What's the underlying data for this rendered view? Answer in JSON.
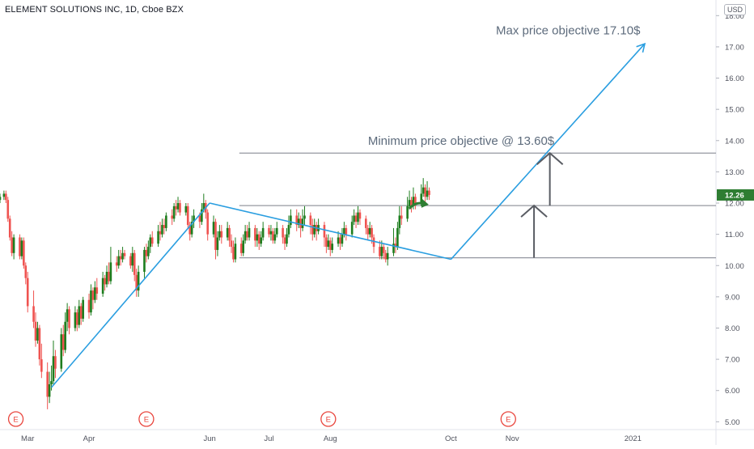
{
  "header": {
    "title": "ELEMENT SOLUTIONS INC, 1D, Cboe BZX",
    "currency": "USD"
  },
  "colors": {
    "up": "#26a69a",
    "up_fill": "#1e7d1e",
    "down": "#ef5350",
    "trend": "#2a9ee0",
    "level": "#9598a1",
    "arrow": "#595c63",
    "green_arrow": "#2e7d32",
    "price_tag": "#2e7d32",
    "text_annot": "#5d6b7c",
    "earn": "#e9473f"
  },
  "chart_data": {
    "type": "candlestick",
    "title": "ELEMENT SOLUTIONS INC, 1D, Cboe BZX",
    "y_range": [
      4.75,
      18.5
    ],
    "y_ticks": [
      5,
      6,
      7,
      8,
      9,
      10,
      11,
      12,
      13,
      14,
      15,
      16,
      17,
      18
    ],
    "y_tick_labels": [
      "5.00",
      "6.00",
      "7.00",
      "8.00",
      "9.00",
      "10.00",
      "11.00",
      "12.00",
      "13.00",
      "14.00",
      "15.00",
      "16.00",
      "17.00",
      "18.00"
    ],
    "x_ticks": [
      {
        "label": "Mar",
        "day": 0
      },
      {
        "label": "Apr",
        "day": 31
      },
      {
        "label": "Jun",
        "day": 92
      },
      {
        "label": "Jul",
        "day": 122
      },
      {
        "label": "Aug",
        "day": 153
      },
      {
        "label": "Oct",
        "day": 214
      },
      {
        "label": "Nov",
        "day": 245
      },
      {
        "label": "2021",
        "day": 306
      }
    ],
    "x_range": [
      -14,
      348
    ],
    "last_price": "12.26",
    "earnings_markers": [
      {
        "label": "E",
        "day": -6
      },
      {
        "label": "E",
        "day": 60
      },
      {
        "label": "E",
        "day": 152
      },
      {
        "label": "E",
        "day": 243
      }
    ],
    "levels": [
      {
        "name": "minimum objective",
        "value": 13.6,
        "from_day": 107,
        "to_day": 348
      },
      {
        "name": "resistance",
        "value": 11.92,
        "from_day": 107,
        "to_day": 348
      },
      {
        "name": "support",
        "value": 10.25,
        "from_day": 107,
        "to_day": 348
      }
    ],
    "trendlines": [
      {
        "from": {
          "day": 12,
          "price": 6.1
        },
        "to": {
          "day": 92,
          "price": 12.0
        }
      },
      {
        "from": {
          "day": 92,
          "price": 12.0
        },
        "to": {
          "day": 214,
          "price": 10.2
        }
      },
      {
        "from": {
          "day": 214,
          "price": 10.2
        },
        "to": {
          "day": 312,
          "price": 17.1
        }
      }
    ],
    "annotations": [
      {
        "text": "Max price objective 17.10$",
        "day": 295,
        "price": 17.4
      },
      {
        "text": "Minimum price objective @ 13.60$",
        "day": 220,
        "price": 13.86
      }
    ],
    "price_objectives": [
      {
        "label": "minimum",
        "value": 13.6
      },
      {
        "label": "max",
        "value": 17.1
      }
    ],
    "candles": [
      [
        -14,
        12.1,
        12.2,
        12.3,
        12.0
      ],
      [
        -12,
        12.2,
        12.3,
        12.4,
        12.1
      ],
      [
        -11,
        12.3,
        12.1,
        12.4,
        12.0
      ],
      [
        -10,
        12.1,
        11.5,
        12.2,
        11.4
      ],
      [
        -9,
        11.5,
        10.9,
        11.6,
        10.8
      ],
      [
        -8,
        10.9,
        10.4,
        11.1,
        10.3
      ],
      [
        -7,
        10.4,
        10.9,
        11.0,
        10.2
      ],
      [
        -4,
        10.9,
        10.3,
        11.0,
        10.2
      ],
      [
        -3,
        10.3,
        10.8,
        10.9,
        10.2
      ],
      [
        -2,
        10.8,
        10.0,
        10.9,
        9.9
      ],
      [
        -1,
        10.0,
        9.6,
        10.1,
        9.4
      ],
      [
        0,
        9.6,
        8.7,
        9.8,
        8.5
      ],
      [
        3,
        8.7,
        8.2,
        9.2,
        8.0
      ],
      [
        4,
        8.2,
        7.6,
        8.5,
        7.4
      ],
      [
        5,
        7.6,
        8.0,
        8.2,
        7.5
      ],
      [
        6,
        8.0,
        7.0,
        8.1,
        6.8
      ],
      [
        7,
        7.0,
        6.6,
        7.5,
        6.4
      ],
      [
        10,
        6.6,
        5.8,
        6.9,
        5.4
      ],
      [
        11,
        5.8,
        6.2,
        6.6,
        5.6
      ],
      [
        12,
        6.2,
        6.3,
        6.8,
        6.0
      ],
      [
        13,
        6.3,
        7.1,
        7.6,
        6.2
      ],
      [
        14,
        7.1,
        6.7,
        7.3,
        6.4
      ],
      [
        17,
        6.7,
        7.8,
        8.0,
        6.6
      ],
      [
        18,
        7.8,
        7.3,
        8.1,
        7.1
      ],
      [
        19,
        7.3,
        8.2,
        8.5,
        7.2
      ],
      [
        20,
        8.2,
        8.6,
        8.8,
        7.9
      ],
      [
        21,
        8.6,
        8.0,
        8.7,
        7.8
      ],
      [
        24,
        8.0,
        8.5,
        8.7,
        7.9
      ],
      [
        25,
        8.5,
        8.1,
        8.6,
        7.9
      ],
      [
        26,
        8.1,
        8.7,
        8.9,
        8.0
      ],
      [
        27,
        8.7,
        8.3,
        8.8,
        8.1
      ],
      [
        28,
        8.3,
        8.9,
        9.0,
        8.2
      ],
      [
        31,
        8.9,
        8.5,
        9.1,
        8.3
      ],
      [
        32,
        8.5,
        9.2,
        9.4,
        8.4
      ],
      [
        33,
        9.2,
        8.9,
        9.3,
        8.6
      ],
      [
        34,
        8.9,
        9.3,
        9.5,
        8.8
      ],
      [
        35,
        9.3,
        9.1,
        9.6,
        8.9
      ],
      [
        38,
        9.1,
        9.6,
        9.8,
        9.0
      ],
      [
        39,
        9.6,
        9.4,
        9.7,
        9.2
      ],
      [
        40,
        9.4,
        9.8,
        10.0,
        9.3
      ],
      [
        41,
        9.8,
        9.5,
        10.1,
        9.4
      ],
      [
        42,
        9.5,
        10.1,
        10.6,
        9.4
      ],
      [
        45,
        10.1,
        10.0,
        10.3,
        9.8
      ],
      [
        46,
        10.0,
        10.3,
        10.5,
        9.9
      ],
      [
        47,
        10.3,
        10.2,
        10.5,
        10.0
      ],
      [
        48,
        10.2,
        10.4,
        10.6,
        10.1
      ],
      [
        49,
        10.4,
        10.3,
        10.5,
        10.2
      ],
      [
        52,
        10.3,
        10.0,
        10.4,
        9.9
      ],
      [
        53,
        10.0,
        10.4,
        10.6,
        9.8
      ],
      [
        54,
        10.4,
        9.7,
        10.5,
        9.5
      ],
      [
        55,
        9.7,
        9.2,
        9.9,
        9.0
      ],
      [
        56,
        9.2,
        9.8,
        10.0,
        9.0
      ],
      [
        59,
        9.8,
        10.5,
        10.6,
        9.6
      ],
      [
        60,
        10.5,
        10.3,
        10.7,
        10.1
      ],
      [
        61,
        10.3,
        10.6,
        10.8,
        10.2
      ],
      [
        62,
        10.6,
        10.9,
        11.0,
        10.4
      ],
      [
        63,
        10.9,
        10.7,
        11.1,
        10.6
      ],
      [
        66,
        10.7,
        11.1,
        11.3,
        10.6
      ],
      [
        67,
        11.1,
        11.0,
        11.4,
        10.8
      ],
      [
        68,
        11.0,
        11.3,
        11.5,
        10.9
      ],
      [
        69,
        11.3,
        11.2,
        11.5,
        11.0
      ],
      [
        70,
        11.2,
        11.6,
        11.7,
        11.1
      ],
      [
        73,
        11.6,
        11.5,
        11.8,
        11.3
      ],
      [
        74,
        11.5,
        11.9,
        12.0,
        11.4
      ],
      [
        75,
        11.9,
        11.8,
        12.1,
        11.6
      ],
      [
        76,
        11.8,
        12.0,
        12.2,
        11.7
      ],
      [
        77,
        12.0,
        11.7,
        12.1,
        11.6
      ],
      [
        80,
        11.7,
        11.9,
        12.0,
        11.6
      ],
      [
        81,
        11.9,
        11.3,
        12.0,
        11.2
      ],
      [
        82,
        11.3,
        11.0,
        11.4,
        10.8
      ],
      [
        83,
        11.0,
        11.4,
        11.6,
        10.9
      ],
      [
        84,
        11.4,
        11.6,
        11.8,
        11.2
      ],
      [
        87,
        11.6,
        11.4,
        11.7,
        11.2
      ],
      [
        88,
        11.4,
        11.8,
        12.0,
        11.3
      ],
      [
        89,
        11.8,
        12.0,
        12.3,
        11.7
      ],
      [
        90,
        12.0,
        11.7,
        12.1,
        11.5
      ],
      [
        91,
        11.7,
        11.0,
        11.8,
        10.8
      ],
      [
        94,
        11.0,
        11.4,
        11.6,
        10.9
      ],
      [
        95,
        11.4,
        10.5,
        11.5,
        10.2
      ],
      [
        96,
        10.5,
        10.9,
        11.1,
        10.3
      ],
      [
        97,
        10.9,
        11.1,
        11.3,
        10.8
      ],
      [
        98,
        11.1,
        10.9,
        11.3,
        10.7
      ],
      [
        101,
        10.9,
        11.2,
        11.4,
        10.8
      ],
      [
        102,
        11.2,
        10.8,
        11.3,
        10.6
      ],
      [
        103,
        10.8,
        10.6,
        11.0,
        10.4
      ],
      [
        104,
        10.6,
        10.2,
        10.8,
        10.1
      ],
      [
        105,
        10.2,
        10.7,
        10.9,
        10.1
      ],
      [
        108,
        10.7,
        10.4,
        10.9,
        10.3
      ],
      [
        109,
        10.4,
        10.8,
        11.0,
        10.3
      ],
      [
        110,
        10.8,
        11.1,
        11.3,
        10.7
      ],
      [
        111,
        11.1,
        10.9,
        11.3,
        10.8
      ],
      [
        112,
        10.9,
        11.2,
        11.4,
        10.8
      ],
      [
        115,
        11.2,
        10.8,
        11.3,
        10.6
      ],
      [
        116,
        10.8,
        11.0,
        11.2,
        10.6
      ],
      [
        117,
        11.0,
        10.7,
        11.1,
        10.5
      ],
      [
        118,
        10.7,
        10.9,
        11.1,
        10.6
      ],
      [
        119,
        10.9,
        11.2,
        11.4,
        10.8
      ],
      [
        122,
        11.2,
        11.0,
        11.3,
        10.9
      ],
      [
        123,
        11.0,
        11.1,
        11.3,
        10.8
      ],
      [
        124,
        11.1,
        10.8,
        11.2,
        10.7
      ],
      [
        125,
        10.8,
        11.0,
        11.2,
        10.7
      ],
      [
        126,
        11.0,
        11.2,
        11.4,
        10.9
      ],
      [
        129,
        11.2,
        10.9,
        11.3,
        10.7
      ],
      [
        130,
        10.9,
        10.7,
        11.0,
        10.5
      ],
      [
        131,
        10.7,
        11.0,
        11.2,
        10.6
      ],
      [
        132,
        11.0,
        11.3,
        11.6,
        10.9
      ],
      [
        133,
        11.3,
        11.6,
        11.8,
        11.2
      ],
      [
        136,
        11.6,
        11.3,
        11.8,
        11.1
      ],
      [
        137,
        11.3,
        11.5,
        11.7,
        11.2
      ],
      [
        138,
        11.5,
        11.2,
        11.6,
        10.9
      ],
      [
        139,
        11.2,
        11.5,
        11.8,
        11.1
      ],
      [
        140,
        11.5,
        11.6,
        11.9,
        11.3
      ],
      [
        143,
        11.6,
        11.3,
        11.7,
        11.0
      ],
      [
        144,
        11.3,
        11.0,
        11.5,
        10.8
      ],
      [
        145,
        11.0,
        11.3,
        11.5,
        10.9
      ],
      [
        146,
        11.3,
        11.1,
        11.4,
        10.8
      ],
      [
        147,
        11.1,
        11.3,
        11.5,
        11.0
      ],
      [
        150,
        11.3,
        10.9,
        11.4,
        10.6
      ],
      [
        151,
        10.9,
        10.6,
        11.0,
        10.4
      ],
      [
        152,
        10.6,
        10.8,
        11.0,
        10.5
      ],
      [
        153,
        10.8,
        10.5,
        10.9,
        10.3
      ],
      [
        154,
        10.5,
        10.7,
        10.9,
        10.4
      ],
      [
        157,
        10.7,
        10.9,
        11.1,
        10.6
      ],
      [
        158,
        10.9,
        10.7,
        11.0,
        10.5
      ],
      [
        159,
        10.7,
        11.0,
        11.2,
        10.6
      ],
      [
        160,
        11.0,
        11.2,
        11.4,
        10.9
      ],
      [
        161,
        11.2,
        11.0,
        11.3,
        10.8
      ],
      [
        164,
        11.0,
        11.4,
        11.6,
        10.9
      ],
      [
        165,
        11.4,
        11.6,
        11.8,
        11.3
      ],
      [
        166,
        11.6,
        11.4,
        11.7,
        11.2
      ],
      [
        167,
        11.4,
        11.7,
        11.9,
        11.3
      ],
      [
        168,
        11.7,
        11.5,
        11.8,
        11.3
      ],
      [
        171,
        11.5,
        11.2,
        11.6,
        11.0
      ],
      [
        172,
        11.2,
        11.0,
        11.3,
        10.8
      ],
      [
        173,
        11.0,
        11.2,
        11.4,
        10.9
      ],
      [
        174,
        11.2,
        10.9,
        11.3,
        10.7
      ],
      [
        175,
        10.9,
        10.6,
        11.0,
        10.4
      ],
      [
        178,
        10.6,
        10.3,
        10.8,
        10.2
      ],
      [
        179,
        10.3,
        10.6,
        10.8,
        10.2
      ],
      [
        180,
        10.6,
        10.4,
        10.7,
        10.2
      ],
      [
        181,
        10.4,
        10.2,
        10.5,
        10.1
      ],
      [
        182,
        10.2,
        10.4,
        10.6,
        10.0
      ],
      [
        185,
        10.4,
        10.7,
        11.2,
        10.3
      ],
      [
        186,
        10.7,
        10.6,
        10.9,
        10.4
      ],
      [
        187,
        10.6,
        11.2,
        11.4,
        10.5
      ],
      [
        188,
        11.2,
        11.6,
        11.9,
        11.0
      ],
      [
        189,
        11.6,
        11.5,
        11.9,
        11.3
      ],
      [
        192,
        11.5,
        11.9,
        12.2,
        11.4
      ],
      [
        193,
        11.9,
        12.1,
        12.4,
        11.8
      ],
      [
        194,
        12.1,
        11.9,
        12.2,
        11.7
      ],
      [
        195,
        11.9,
        12.2,
        12.5,
        11.8
      ],
      [
        196,
        12.2,
        12.0,
        12.3,
        11.8
      ],
      [
        199,
        12.0,
        12.3,
        12.6,
        11.9
      ],
      [
        200,
        12.3,
        12.5,
        12.8,
        12.2
      ],
      [
        201,
        12.5,
        12.2,
        12.6,
        12.0
      ],
      [
        202,
        12.2,
        12.4,
        12.7,
        12.1
      ],
      [
        203,
        12.4,
        12.26,
        12.5,
        12.1
      ]
    ]
  }
}
